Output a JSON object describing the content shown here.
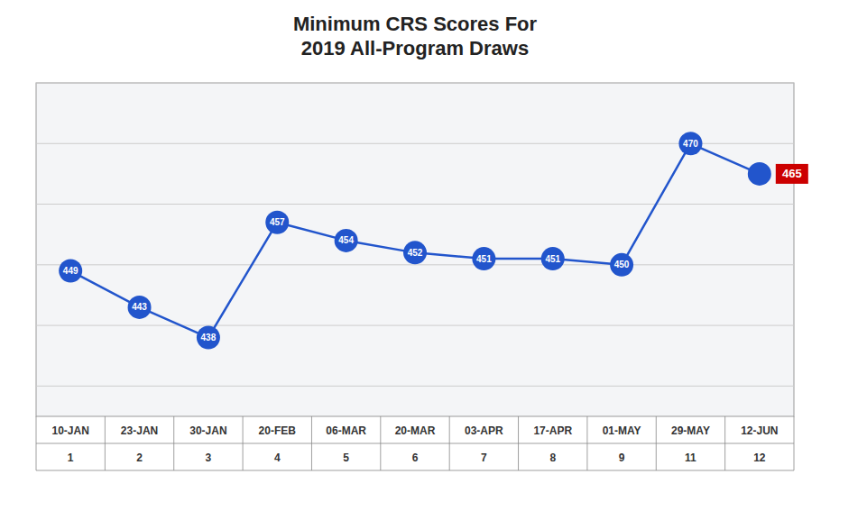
{
  "chart_data": {
    "type": "line",
    "title": "Minimum CRS Scores For\n2019 All-Program Draws",
    "categories": [
      "10-JAN\n1",
      "23-JAN\n2",
      "30-JAN\n3",
      "20-FEB\n4",
      "06-MAR\n5",
      "20-MAR\n6",
      "03-APR\n7",
      "17-APR\n8",
      "01-MAY\n9",
      "29-MAY\n11",
      "12-JUN\n12"
    ],
    "values": [
      449,
      443,
      438,
      457,
      454,
      452,
      451,
      451,
      450,
      470,
      465
    ],
    "color": "#2255CC",
    "ylim": [
      425,
      480
    ],
    "yticks": [
      430,
      440,
      450,
      460,
      470,
      480
    ],
    "grid": true,
    "data_labels": true,
    "tick_labels": "x"
  }
}
